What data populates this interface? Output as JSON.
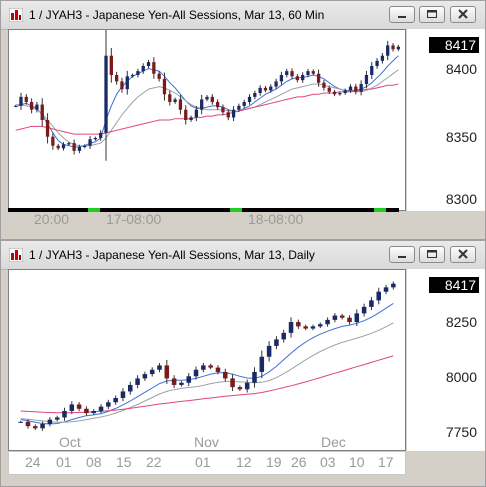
{
  "colors": {
    "ma_fast": "#3f6fd6",
    "ma_mid": "#9aa3a8",
    "ma_slow": "#e0457f",
    "bull": "#1a2a66",
    "bear": "#7a1a1a",
    "session_marker": "#22cc22"
  },
  "window1": {
    "title": "1 / JYAH3 - Japanese Yen-All Sessions, Mar 13, 60 Min",
    "last_price": "8417",
    "y_labels": [
      "8400",
      "8350",
      "8300"
    ],
    "x_labels": [
      "20:00",
      "17-08:00",
      "18-08:00"
    ],
    "buttons": {
      "minimize": "minimize",
      "restore": "restore",
      "close": "close"
    }
  },
  "window2": {
    "title": "1 / JYAH3 - Japanese Yen-All Sessions, Mar 13, Daily",
    "last_price": "8417",
    "y_labels": [
      "8250",
      "8000",
      "7750"
    ],
    "x_labels": [
      "24",
      "01",
      "08",
      "15",
      "22",
      "01",
      "12",
      "19",
      "26",
      "03",
      "10",
      "17"
    ],
    "month_labels": [
      "Oct",
      "Nov",
      "Dec"
    ],
    "buttons": {
      "minimize": "minimize",
      "restore": "restore",
      "close": "close"
    }
  },
  "chart_data": [
    {
      "type": "candlestick",
      "title": "1 / JYAH3 - Japanese Yen-All Sessions, Mar 13, 60 Min",
      "ylim": [
        8290,
        8430
      ],
      "y_ticks": [
        8300,
        8350,
        8400
      ],
      "x_tick_labels": [
        "20:00",
        "17-08:00",
        "18-08:00"
      ],
      "last_price": 8417,
      "closes": [
        8371,
        8378,
        8374,
        8368,
        8372,
        8360,
        8347,
        8340,
        8338,
        8341,
        8342,
        8336,
        8339,
        8340,
        8345,
        8346,
        8350,
        8410,
        8395,
        8390,
        8384,
        8394,
        8395,
        8398,
        8402,
        8405,
        8396,
        8392,
        8380,
        8374,
        8376,
        8368,
        8360,
        8362,
        8368,
        8376,
        8378,
        8374,
        8370,
        8366,
        8362,
        8368,
        8371,
        8374,
        8378,
        8381,
        8385,
        8383,
        8386,
        8390,
        8395,
        8398,
        8394,
        8391,
        8395,
        8398,
        8396,
        8389,
        8385,
        8382,
        8380,
        8381,
        8383,
        8386,
        8382,
        8388,
        8395,
        8402,
        8406,
        8410,
        8418,
        8415,
        8417
      ],
      "series": [
        {
          "name": "MA fast",
          "values": [
            8370,
            8372,
            8373,
            8371,
            8369,
            8364,
            8357,
            8350,
            8344,
            8341,
            8340,
            8339,
            8339,
            8340,
            8342,
            8343,
            8346,
            8360,
            8371,
            8380,
            8386,
            8390,
            8394,
            8396,
            8398,
            8400,
            8399,
            8398,
            8394,
            8389,
            8385,
            8380,
            8375,
            8371,
            8369,
            8369,
            8370,
            8371,
            8371,
            8370,
            8368,
            8367,
            8367,
            8369,
            8371,
            8374,
            8377,
            8380,
            8382,
            8384,
            8387,
            8390,
            8392,
            8393,
            8393,
            8394,
            8395,
            8394,
            8392,
            8389,
            8386,
            8384,
            8383,
            8383,
            8383,
            8384,
            8386,
            8389,
            8393,
            8397,
            8402,
            8406,
            8410
          ]
        },
        {
          "name": "MA mid",
          "values": [
            8372,
            8372,
            8371,
            8370,
            8368,
            8365,
            8360,
            8355,
            8350,
            8346,
            8343,
            8341,
            8340,
            8340,
            8340,
            8341,
            8342,
            8346,
            8352,
            8358,
            8364,
            8369,
            8374,
            8378,
            8381,
            8384,
            8385,
            8386,
            8385,
            8383,
            8381,
            8378,
            8375,
            8372,
            8370,
            8369,
            8368,
            8368,
            8368,
            8368,
            8367,
            8367,
            8367,
            8368,
            8369,
            8370,
            8372,
            8374,
            8376,
            8378,
            8380,
            8382,
            8384,
            8385,
            8386,
            8387,
            8388,
            8388,
            8387,
            8386,
            8385,
            8384,
            8383,
            8382,
            8382,
            8382,
            8383,
            8385,
            8387,
            8390,
            8393,
            8396,
            8399
          ]
        },
        {
          "name": "MA slow",
          "values": [
            8352,
            8353,
            8354,
            8355,
            8355,
            8355,
            8354,
            8353,
            8352,
            8351,
            8350,
            8349,
            8349,
            8349,
            8349,
            8349,
            8349,
            8350,
            8351,
            8352,
            8353,
            8354,
            8355,
            8356,
            8357,
            8358,
            8359,
            8360,
            8360,
            8360,
            8361,
            8361,
            8361,
            8361,
            8362,
            8362,
            8363,
            8363,
            8364,
            8364,
            8365,
            8366,
            8367,
            8368,
            8369,
            8370,
            8371,
            8372,
            8373,
            8374,
            8375,
            8376,
            8377,
            8378,
            8378,
            8379,
            8380,
            8380,
            8381,
            8381,
            8381,
            8382,
            8382,
            8382,
            8383,
            8383,
            8384,
            8384,
            8385,
            8386,
            8387,
            8387,
            8388
          ]
        }
      ]
    },
    {
      "type": "candlestick",
      "title": "1 / JYAH3 - Japanese Yen-All Sessions, Mar 13, Daily",
      "ylim": [
        7650,
        8480
      ],
      "y_ticks": [
        7750,
        8000,
        8250
      ],
      "x_tick_labels": [
        "24",
        "01",
        "08",
        "15",
        "22",
        "01",
        "12",
        "19",
        "26",
        "03",
        "10",
        "17"
      ],
      "month_labels": [
        "Oct",
        "Nov",
        "Dec"
      ],
      "last_price": 8417,
      "closes": [
        7780,
        7760,
        7750,
        7770,
        7790,
        7800,
        7830,
        7860,
        7840,
        7820,
        7830,
        7850,
        7870,
        7890,
        7920,
        7950,
        7980,
        8000,
        8020,
        8040,
        7980,
        7950,
        7960,
        7990,
        8020,
        8040,
        8030,
        8010,
        7980,
        7940,
        7930,
        7960,
        8010,
        8080,
        8130,
        8160,
        8190,
        8240,
        8220,
        8210,
        8220,
        8230,
        8250,
        8270,
        8260,
        8240,
        8280,
        8310,
        8340,
        8380,
        8400,
        8417
      ],
      "series": [
        {
          "name": "MA fast",
          "values": [
            7790,
            7785,
            7778,
            7772,
            7770,
            7772,
            7780,
            7790,
            7800,
            7808,
            7812,
            7818,
            7828,
            7842,
            7858,
            7876,
            7896,
            7916,
            7936,
            7956,
            7968,
            7972,
            7972,
            7974,
            7980,
            7990,
            8000,
            8006,
            8006,
            8000,
            7990,
            7982,
            7980,
            7990,
            8010,
            8036,
            8066,
            8096,
            8124,
            8148,
            8168,
            8184,
            8198,
            8210,
            8220,
            8226,
            8234,
            8246,
            8262,
            8282,
            8304,
            8326
          ]
        },
        {
          "name": "MA mid",
          "values": [
            7795,
            7792,
            7788,
            7784,
            7780,
            7778,
            7778,
            7780,
            7784,
            7790,
            7796,
            7802,
            7810,
            7820,
            7832,
            7846,
            7860,
            7876,
            7892,
            7908,
            7920,
            7928,
            7934,
            7938,
            7942,
            7948,
            7956,
            7962,
            7966,
            7966,
            7964,
            7962,
            7960,
            7962,
            7970,
            7984,
            8002,
            8022,
            8044,
            8066,
            8086,
            8104,
            8120,
            8134,
            8146,
            8156,
            8166,
            8176,
            8188,
            8202,
            8218,
            8236
          ]
        },
        {
          "name": "MA slow",
          "values": [
            7830,
            7828,
            7826,
            7824,
            7823,
            7822,
            7822,
            7822,
            7823,
            7824,
            7826,
            7828,
            7831,
            7834,
            7838,
            7842,
            7847,
            7852,
            7857,
            7862,
            7866,
            7870,
            7874,
            7878,
            7882,
            7886,
            7890,
            7894,
            7898,
            7901,
            7904,
            7907,
            7910,
            7915,
            7922,
            7930,
            7938,
            7946,
            7955,
            7964,
            7974,
            7984,
            7994,
            8004,
            8014,
            8024,
            8034,
            8044,
            8054,
            8064,
            8074,
            8084
          ]
        }
      ]
    }
  ]
}
